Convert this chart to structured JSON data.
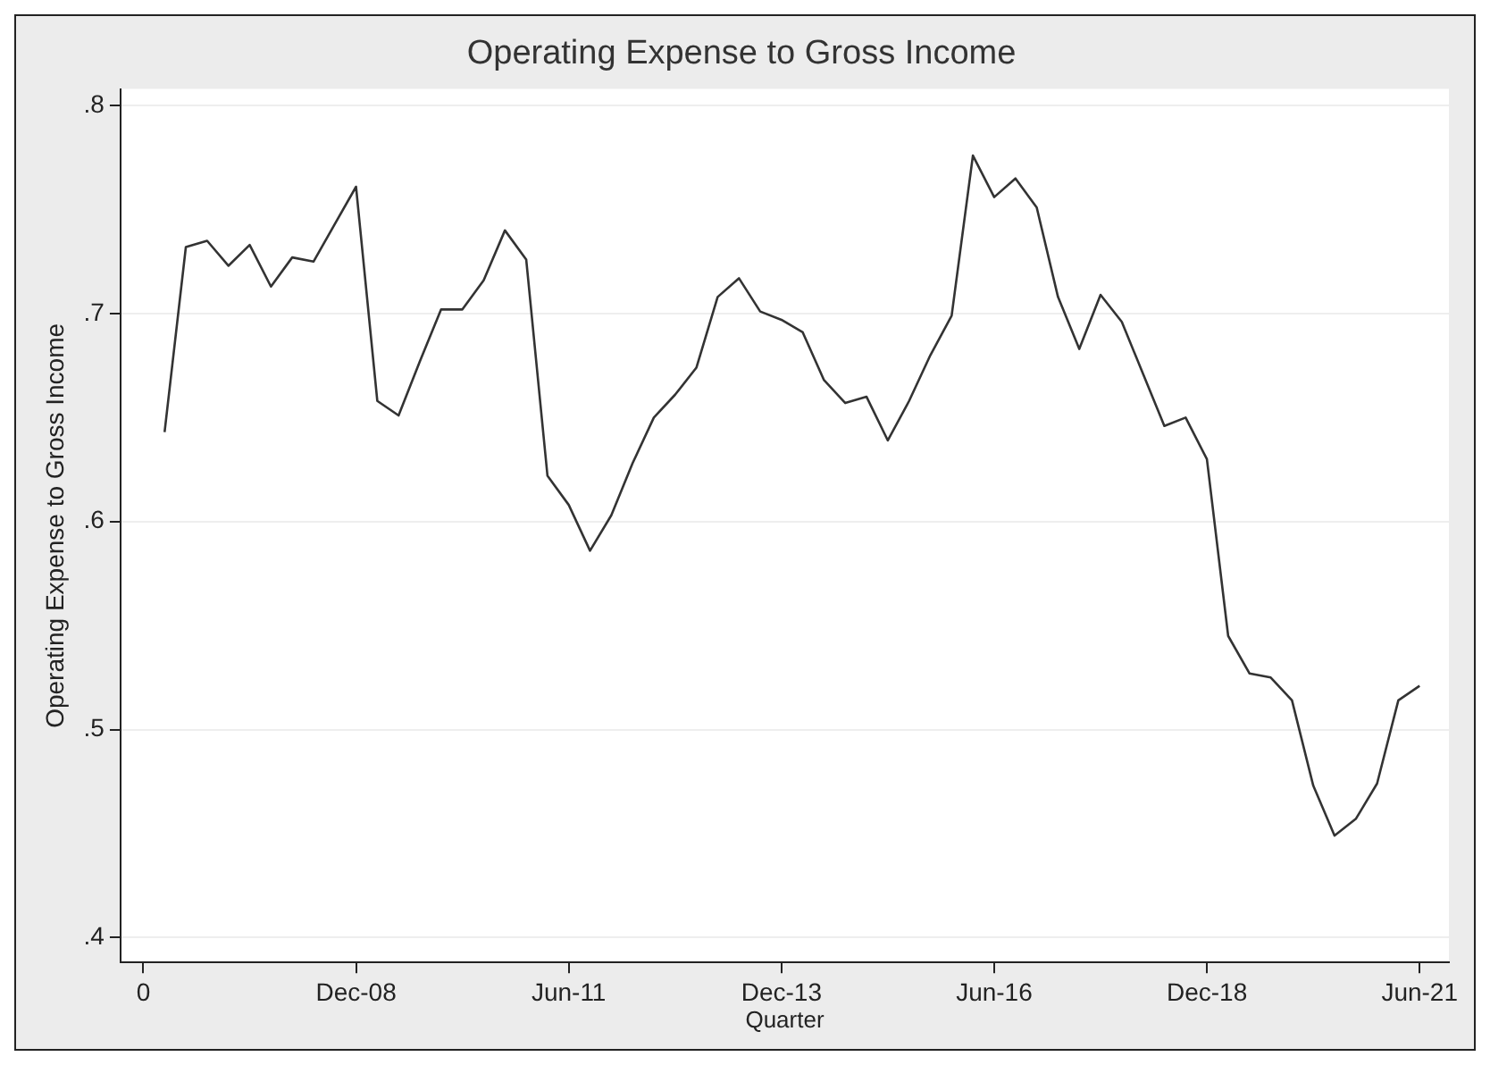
{
  "chart_data": {
    "type": "line",
    "title": "Operating Expense to Gross Income",
    "xlabel": "Quarter",
    "ylabel": "Operating Expense to Gross Income",
    "x": [
      "2006-09",
      "2006-12",
      "2007-03",
      "2007-06",
      "2007-09",
      "2007-12",
      "2008-03",
      "2008-06",
      "2008-09",
      "2008-12",
      "2009-03",
      "2009-06",
      "2009-09",
      "2009-12",
      "2010-03",
      "2010-06",
      "2010-09",
      "2010-12",
      "2011-03",
      "2011-06",
      "2011-09",
      "2011-12",
      "2012-03",
      "2012-06",
      "2012-09",
      "2012-12",
      "2013-03",
      "2013-06",
      "2013-09",
      "2013-12",
      "2014-03",
      "2014-06",
      "2014-09",
      "2014-12",
      "2015-03",
      "2015-06",
      "2015-09",
      "2015-12",
      "2016-03",
      "2016-06",
      "2016-09",
      "2016-12",
      "2017-03",
      "2017-06",
      "2017-09",
      "2017-12",
      "2018-03",
      "2018-06",
      "2018-09",
      "2018-12",
      "2019-03",
      "2019-06",
      "2019-09",
      "2019-12",
      "2020-03",
      "2020-06",
      "2020-09",
      "2020-12",
      "2021-03",
      "2021-06"
    ],
    "series": [
      {
        "color": "#333333",
        "values": [
          0.643,
          0.732,
          0.735,
          0.723,
          0.733,
          0.713,
          0.727,
          0.725,
          0.743,
          0.761,
          0.658,
          0.651,
          0.677,
          0.702,
          0.702,
          0.716,
          0.74,
          0.726,
          0.622,
          0.608,
          0.586,
          0.603,
          0.628,
          0.65,
          0.661,
          0.674,
          0.708,
          0.717,
          0.701,
          0.697,
          0.691,
          0.668,
          0.657,
          0.66,
          0.639,
          0.658,
          0.68,
          0.699,
          0.776,
          0.756,
          0.765,
          0.751,
          0.708,
          0.683,
          0.709,
          0.696,
          0.671,
          0.646,
          0.65,
          0.63,
          0.545,
          0.527,
          0.525,
          0.514,
          0.473,
          0.449,
          0.457,
          0.474,
          0.514,
          0.521
        ]
      }
    ],
    "xlim": [
      "2006-02-25",
      "2021-10-05"
    ],
    "xticks": [
      {
        "value": "2006-06",
        "label": "0"
      },
      {
        "value": "2008-12",
        "label": "Dec-08"
      },
      {
        "value": "2011-06",
        "label": "Jun-11"
      },
      {
        "value": "2013-12",
        "label": "Dec-13"
      },
      {
        "value": "2016-06",
        "label": "Jun-16"
      },
      {
        "value": "2018-12",
        "label": "Dec-18"
      },
      {
        "value": "2021-06",
        "label": "Jun-21"
      }
    ],
    "ylim": [
      0.388,
      0.808
    ],
    "yticks": [
      {
        "value": 0.4,
        "label": ".4"
      },
      {
        "value": 0.5,
        "label": ".5"
      },
      {
        "value": 0.6,
        "label": ".6"
      },
      {
        "value": 0.7,
        "label": ".7"
      },
      {
        "value": 0.8,
        "label": ".8"
      }
    ],
    "grid": "y",
    "legend": false,
    "marker": "none",
    "line_style": "solid"
  }
}
